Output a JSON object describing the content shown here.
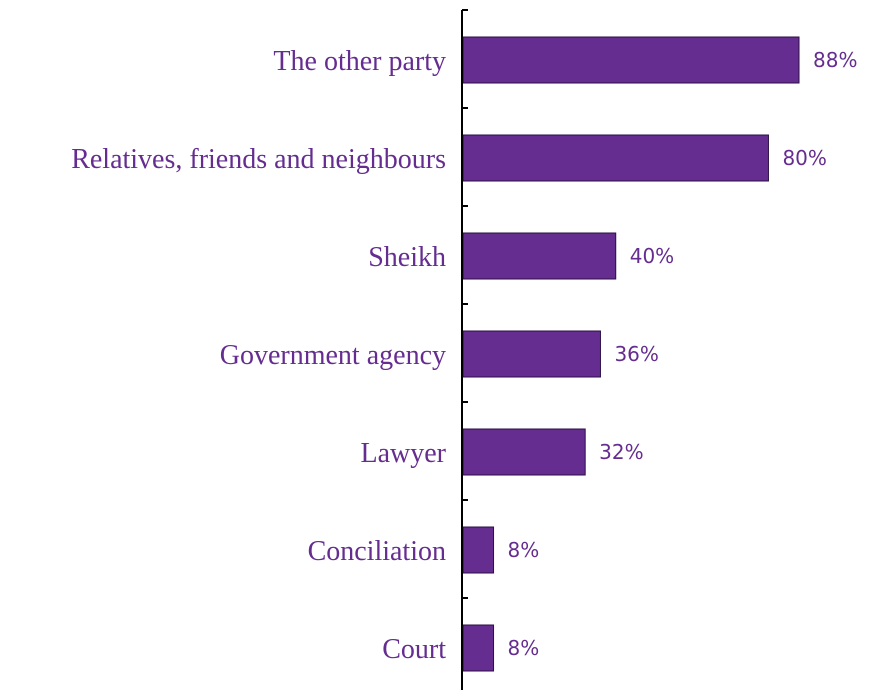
{
  "chart_data": {
    "type": "bar",
    "orientation": "horizontal",
    "categories": [
      "The other party",
      "Relatives, friends and neighbours",
      "Sheikh",
      "Government agency",
      "Lawyer",
      "Conciliation",
      "Court"
    ],
    "values": [
      88,
      80,
      40,
      36,
      32,
      8,
      8
    ],
    "value_labels": [
      "88%",
      "80%",
      "40%",
      "36%",
      "32%",
      "8%",
      "8%"
    ],
    "unit": "%",
    "title": "",
    "xlabel": "",
    "ylabel": "",
    "xlim": [
      0,
      100
    ],
    "grid": false,
    "legend": "none",
    "colors": {
      "bar_fill": "#652D90",
      "bar_stroke": "#2B0F44",
      "text": "#652D90",
      "axis": "#000000"
    }
  }
}
